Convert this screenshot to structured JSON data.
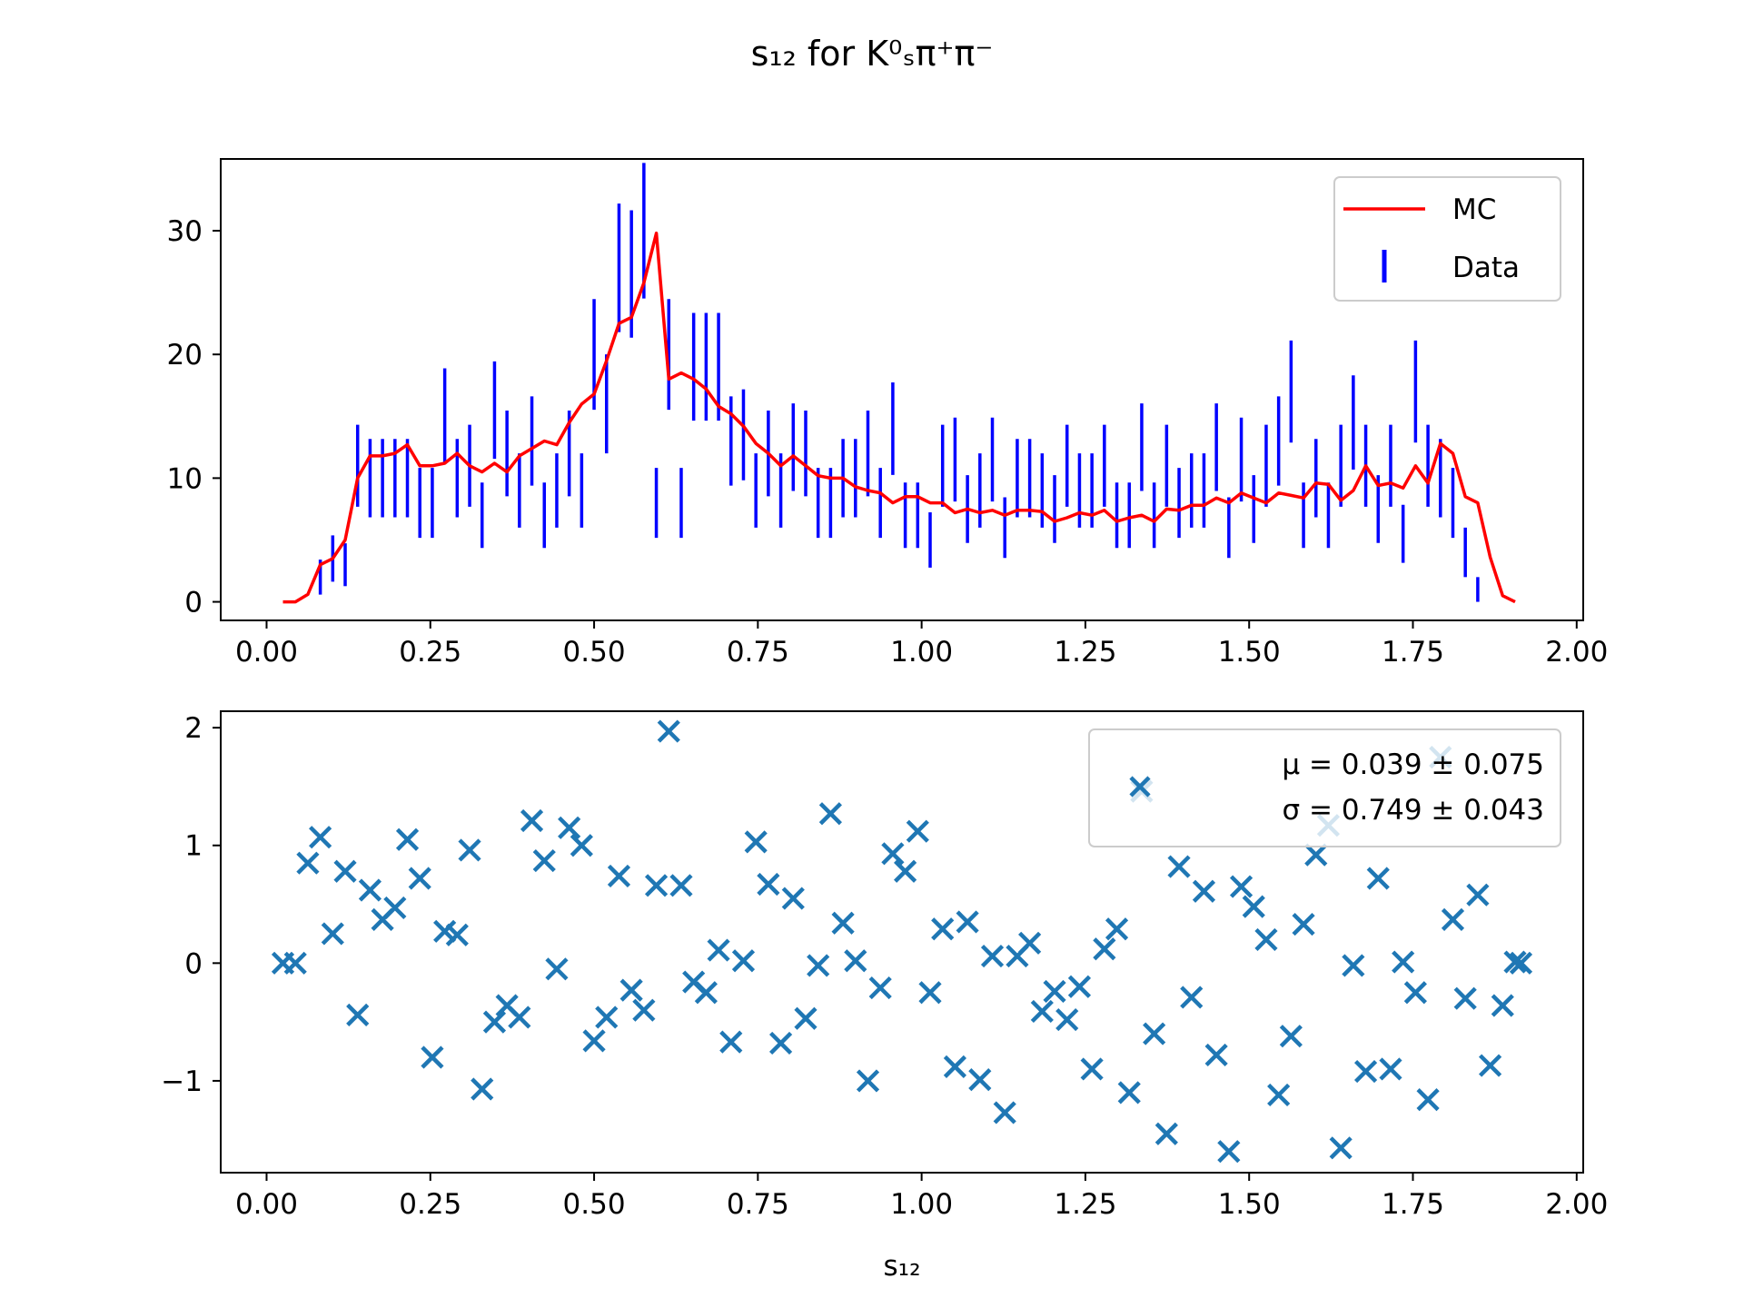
{
  "figure": {
    "title": "s₁₂ for K⁰ₛπ⁺π⁻",
    "xlabel": "s₁₂"
  },
  "colors": {
    "mc_line": "#ff0000",
    "data_bars": "#0000ff",
    "pulls": "#1f77b4"
  },
  "chart_data": [
    {
      "type": "line",
      "panel": "top",
      "xlim": [
        -0.07,
        2.01
      ],
      "ylim": [
        -1.5,
        35.8
      ],
      "xticks": [
        0.0,
        0.25,
        0.5,
        0.75,
        1.0,
        1.25,
        1.5,
        1.75,
        2.0
      ],
      "xtick_labels": [
        "0.00",
        "0.25",
        "0.50",
        "0.75",
        "1.00",
        "1.25",
        "1.50",
        "1.75",
        "2.00"
      ],
      "yticks": [
        0,
        10,
        20,
        30
      ],
      "ytick_labels": [
        "0",
        "10",
        "20",
        "30"
      ],
      "grid": false,
      "legend_position": "upper right",
      "series": [
        {
          "name": "MC",
          "style": "line",
          "x": [
            0.025,
            0.044,
            0.063,
            0.082,
            0.101,
            0.12,
            0.139,
            0.158,
            0.177,
            0.196,
            0.215,
            0.234,
            0.253,
            0.272,
            0.291,
            0.31,
            0.329,
            0.348,
            0.367,
            0.386,
            0.405,
            0.424,
            0.443,
            0.462,
            0.481,
            0.5,
            0.519,
            0.538,
            0.557,
            0.576,
            0.595,
            0.614,
            0.633,
            0.652,
            0.671,
            0.69,
            0.709,
            0.728,
            0.747,
            0.766,
            0.785,
            0.804,
            0.823,
            0.842,
            0.861,
            0.88,
            0.899,
            0.918,
            0.937,
            0.956,
            0.975,
            0.994,
            1.013,
            1.032,
            1.051,
            1.07,
            1.089,
            1.108,
            1.127,
            1.146,
            1.165,
            1.184,
            1.203,
            1.222,
            1.241,
            1.26,
            1.279,
            1.298,
            1.317,
            1.336,
            1.355,
            1.374,
            1.393,
            1.412,
            1.431,
            1.45,
            1.469,
            1.488,
            1.507,
            1.526,
            1.545,
            1.564,
            1.583,
            1.602,
            1.621,
            1.64,
            1.659,
            1.678,
            1.697,
            1.716,
            1.735,
            1.754,
            1.773,
            1.792,
            1.811,
            1.83,
            1.849,
            1.868,
            1.887,
            1.906
          ],
          "y": [
            0.0,
            0.0,
            0.6,
            3.0,
            3.5,
            5.0,
            10.0,
            11.8,
            11.8,
            12.0,
            12.7,
            11.0,
            11.0,
            11.2,
            12.0,
            11.0,
            10.5,
            11.2,
            10.5,
            11.8,
            12.4,
            13.0,
            12.7,
            14.5,
            16.0,
            16.8,
            19.5,
            22.5,
            23.0,
            25.8,
            29.8,
            18.0,
            18.5,
            18.0,
            17.2,
            15.8,
            15.2,
            14.2,
            12.8,
            12.0,
            11.0,
            11.8,
            11.0,
            10.2,
            10.0,
            10.0,
            9.3,
            9.0,
            8.8,
            8.0,
            8.5,
            8.5,
            8.0,
            8.0,
            7.2,
            7.5,
            7.2,
            7.4,
            7.0,
            7.4,
            7.4,
            7.3,
            6.5,
            6.8,
            7.2,
            7.0,
            7.4,
            6.5,
            6.8,
            7.0,
            6.5,
            7.5,
            7.4,
            7.8,
            7.8,
            8.4,
            8.0,
            8.8,
            8.4,
            8.0,
            8.8,
            8.6,
            8.4,
            9.6,
            9.5,
            8.2,
            9.0,
            11.0,
            9.4,
            9.6,
            9.2,
            11.0,
            9.6,
            12.8,
            12.0,
            8.5,
            8.0,
            3.6,
            0.5,
            0.0
          ]
        },
        {
          "name": "Data",
          "style": "errorbar",
          "x": [
            0.082,
            0.101,
            0.12,
            0.139,
            0.158,
            0.177,
            0.196,
            0.215,
            0.234,
            0.253,
            0.272,
            0.291,
            0.31,
            0.329,
            0.348,
            0.367,
            0.386,
            0.405,
            0.424,
            0.443,
            0.462,
            0.481,
            0.5,
            0.519,
            0.538,
            0.557,
            0.576,
            0.595,
            0.614,
            0.633,
            0.652,
            0.671,
            0.69,
            0.709,
            0.728,
            0.747,
            0.766,
            0.785,
            0.804,
            0.823,
            0.842,
            0.861,
            0.88,
            0.899,
            0.918,
            0.937,
            0.956,
            0.975,
            0.994,
            1.013,
            1.032,
            1.051,
            1.07,
            1.089,
            1.108,
            1.127,
            1.146,
            1.165,
            1.184,
            1.203,
            1.222,
            1.241,
            1.26,
            1.279,
            1.298,
            1.317,
            1.336,
            1.355,
            1.374,
            1.393,
            1.412,
            1.431,
            1.45,
            1.469,
            1.488,
            1.507,
            1.526,
            1.545,
            1.564,
            1.583,
            1.602,
            1.621,
            1.64,
            1.659,
            1.678,
            1.697,
            1.716,
            1.735,
            1.754,
            1.773,
            1.792,
            1.811,
            1.83,
            1.849
          ],
          "y": [
            2.0,
            3.5,
            3.0,
            11.0,
            10.0,
            10.0,
            10.0,
            10.0,
            8.0,
            8.0,
            15.0,
            10.0,
            11.0,
            7.0,
            15.5,
            12.0,
            9.0,
            13.0,
            7.0,
            9.0,
            12.0,
            9.0,
            20.0,
            16.0,
            27.0,
            26.5,
            30.0,
            8.0,
            20.0,
            8.0,
            19.0,
            19.0,
            19.0,
            13.0,
            13.5,
            9.0,
            12.0,
            9.0,
            12.5,
            12.0,
            8.0,
            8.0,
            10.0,
            10.0,
            12.0,
            8.0,
            14.0,
            7.0,
            7.0,
            5.0,
            11.0,
            11.5,
            7.5,
            9.0,
            11.5,
            6.0,
            10.0,
            10.0,
            9.0,
            7.5,
            11.0,
            9.0,
            9.0,
            11.0,
            7.0,
            7.0,
            12.5,
            7.0,
            11.0,
            8.0,
            9.0,
            9.0,
            12.5,
            6.0,
            11.5,
            7.5,
            11.0,
            13.0,
            17.0,
            7.0,
            10.0,
            7.0,
            11.0,
            14.5,
            11.0,
            7.5,
            11.0,
            5.5,
            17.0,
            11.0,
            10.0,
            8.0,
            4.0,
            1.0
          ]
        }
      ]
    },
    {
      "type": "scatter",
      "panel": "bottom",
      "xlim": [
        -0.07,
        2.01
      ],
      "ylim": [
        -1.78,
        2.14
      ],
      "xticks": [
        0.0,
        0.25,
        0.5,
        0.75,
        1.0,
        1.25,
        1.5,
        1.75,
        2.0
      ],
      "xtick_labels": [
        "0.00",
        "0.25",
        "0.50",
        "0.75",
        "1.00",
        "1.25",
        "1.50",
        "1.75",
        "2.00"
      ],
      "yticks": [
        -1,
        0,
        1,
        2
      ],
      "ytick_labels": [
        "−1",
        "0",
        "1",
        "2"
      ],
      "xlabel": "s₁₂",
      "grid": false,
      "legend_position": "upper right",
      "legend_lines": [
        "μ = 0.039 ± 0.075",
        "σ = 0.749 ± 0.043"
      ],
      "series": [
        {
          "name": "μ = 0.039 ± 0.075 / σ = 0.749 ± 0.043",
          "marker": "x",
          "x": [
            0.025,
            0.044,
            0.063,
            0.082,
            0.101,
            0.12,
            0.139,
            0.158,
            0.177,
            0.196,
            0.215,
            0.234,
            0.253,
            0.272,
            0.291,
            0.31,
            0.329,
            0.348,
            0.367,
            0.386,
            0.405,
            0.424,
            0.443,
            0.462,
            0.481,
            0.5,
            0.519,
            0.538,
            0.557,
            0.576,
            0.595,
            0.614,
            0.633,
            0.652,
            0.671,
            0.69,
            0.709,
            0.728,
            0.747,
            0.766,
            0.785,
            0.804,
            0.823,
            0.842,
            0.861,
            0.88,
            0.899,
            0.918,
            0.937,
            0.956,
            0.975,
            0.994,
            1.013,
            1.032,
            1.051,
            1.07,
            1.089,
            1.108,
            1.127,
            1.146,
            1.165,
            1.184,
            1.203,
            1.222,
            1.241,
            1.26,
            1.279,
            1.298,
            1.317,
            1.336,
            1.355,
            1.374,
            1.393,
            1.412,
            1.431,
            1.45,
            1.469,
            1.488,
            1.507,
            1.526,
            1.545,
            1.564,
            1.583,
            1.602,
            1.621,
            1.64,
            1.659,
            1.678,
            1.697,
            1.716,
            1.735,
            1.754,
            1.773,
            1.792,
            1.811,
            1.83,
            1.849,
            1.868,
            1.887,
            1.906,
            1.915
          ],
          "y": [
            0.0,
            0.0,
            0.85,
            1.07,
            0.25,
            0.78,
            -0.44,
            0.62,
            0.37,
            0.47,
            1.05,
            0.72,
            -0.8,
            0.27,
            0.24,
            0.96,
            -1.07,
            -0.5,
            -0.36,
            -0.46,
            1.21,
            0.87,
            -0.05,
            1.15,
            1.0,
            -0.66,
            -0.46,
            0.74,
            -0.23,
            -0.4,
            0.66,
            1.97,
            0.66,
            -0.16,
            -0.25,
            0.11,
            -0.67,
            0.02,
            1.03,
            0.67,
            -0.68,
            0.55,
            -0.47,
            -0.02,
            1.27,
            0.34,
            0.02,
            -1.0,
            -0.21,
            0.93,
            0.78,
            1.12,
            -0.25,
            0.29,
            -0.88,
            0.35,
            -0.99,
            0.06,
            -1.27,
            0.06,
            0.17,
            -0.41,
            -0.24,
            -0.48,
            -0.2,
            -0.9,
            0.12,
            0.29,
            -1.1,
            1.46,
            -0.6,
            -1.45,
            0.82,
            -0.29,
            0.61,
            -0.78,
            -1.6,
            0.65,
            0.48,
            0.2,
            -1.12,
            -0.62,
            0.33,
            0.92,
            1.17,
            -1.57,
            -0.02,
            -0.92,
            0.72,
            -0.9,
            0.01,
            -0.25,
            -1.16,
            1.75,
            0.37,
            -0.3,
            0.58,
            -0.87,
            -0.36,
            0.01,
            0.0
          ]
        }
      ]
    }
  ]
}
